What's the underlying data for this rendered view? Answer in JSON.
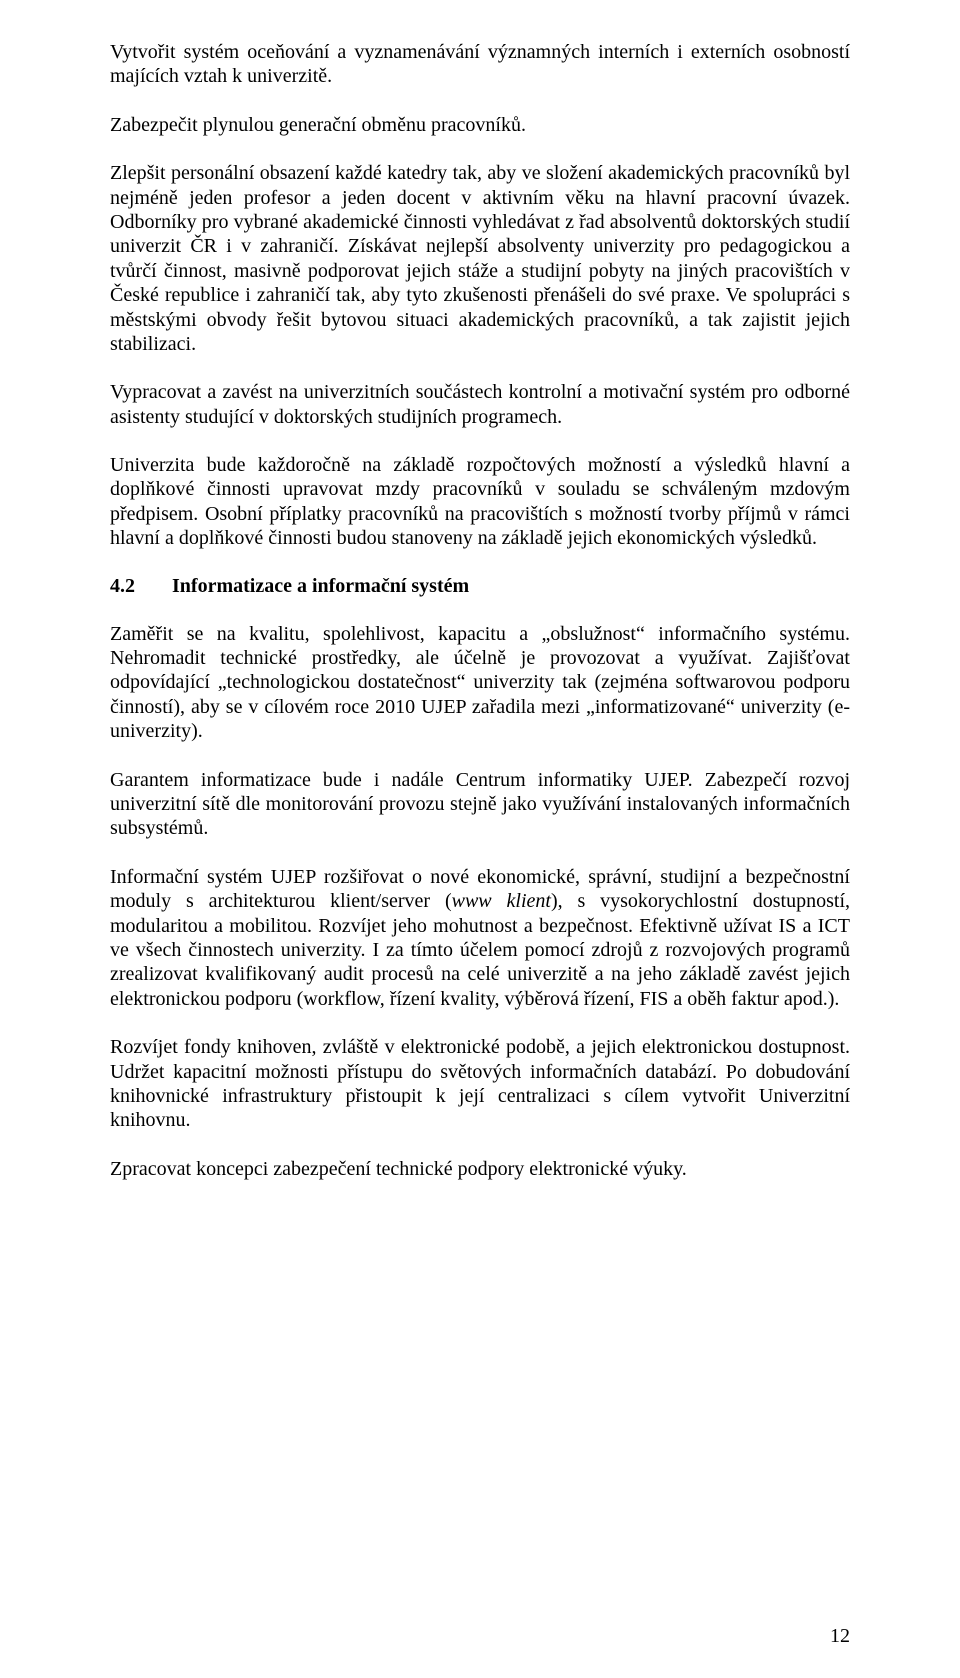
{
  "p1": "Vytvořit systém oceňování a vyznamenávání významných interních i externích osobností majících vztah k univerzitě.",
  "p2": "Zabezpečit plynulou generační obměnu pracovníků.",
  "p3": "Zlepšit personální obsazení každé katedry tak, aby ve složení akademických pracovníků byl nejméně jeden profesor a jeden docent v aktivním věku na hlavní pracovní úvazek. Odborníky pro vybrané akademické činnosti vyhledávat z řad absolventů doktorských studií univerzit ČR i v zahraničí. Získávat nejlepší absolventy univerzity pro pedagogickou a tvůrčí činnost, masivně podporovat jejich stáže a studijní pobyty na jiných pracovištích v České republice i zahraničí tak, aby tyto zkušenosti přenášeli do své praxe. Ve spolupráci s městskými obvody řešit bytovou situaci akademických pracovníků, a tak zajistit jejich stabilizaci.",
  "p4": "Vypracovat a zavést na univerzitních součástech kontrolní a motivační systém pro odborné asistenty studující v doktorských studijních programech.",
  "p5": "Univerzita bude každoročně na základě rozpočtových možností a výsledků hlavní a doplňkové činnosti upravovat mzdy pracovníků v souladu se schváleným mzdovým předpisem. Osobní příplatky pracovníků na pracovištích s možností tvorby příjmů v rámci hlavní a doplňkové činnosti budou stanoveny na základě jejich ekonomických výsledků.",
  "heading_num": "4.2",
  "heading_text": "Informatizace a informační systém",
  "p6": "Zaměřit se na kvalitu, spolehlivost, kapacitu a „obslužnost“ informačního systému. Nehromadit technické prostředky, ale účelně je provozovat a využívat. Zajišťovat odpovídající „technologickou dostatečnost“ univerzity tak (zejména softwarovou podporu činností), aby se v cílovém roce 2010 UJEP zařadila mezi „informatizované“ univerzity (e-univerzity).",
  "p7": "Garantem informatizace bude i nadále Centrum informatiky UJEP. Zabezpečí rozvoj univerzitní sítě dle monitorování provozu stejně jako využívání instalovaných informačních subsystémů.",
  "p8": "Informační systém UJEP rozšiřovat o nové ekonomické, správní, studijní a bezpečnostní moduly s architekturou klient/server (www klient), s vysokorychlostní dostupností, modularitou a mobilitou. Rozvíjet jeho mohutnost a bezpečnost. Efektivně užívat IS a ICT ve všech činnostech univerzity. I za tímto účelem pomocí zdrojů z rozvojových programů zrealizovat kvalifikovaný audit procesů na celé univerzitě a na jeho základě zavést jejich elektronickou podporu (workflow, řízení kvality, výběrová řízení, FIS a oběh faktur apod.).",
  "p9": "Rozvíjet fondy knihoven, zvláště v elektronické podobě, a jejich elektronickou dostupnost. Udržet kapacitní možnosti přístupu do světových informačních databází. Po dobudování knihovnické infrastruktury přistoupit k její centralizaci s cílem vytvořit Univerzitní knihovnu.",
  "p10": "Zpracovat koncepci zabezpečení technické podpory elektronické výuky.",
  "page_number": "12",
  "italic_phrase": "www klient"
}
